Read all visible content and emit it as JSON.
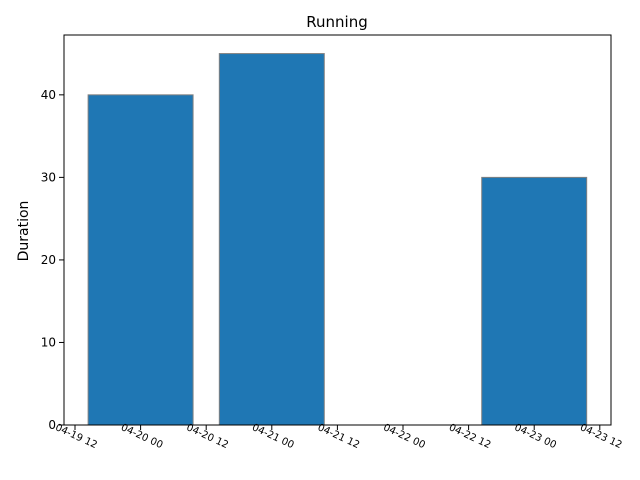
{
  "chart_data": {
    "type": "bar",
    "title": "Running",
    "xlabel": "",
    "ylabel": "Duration",
    "x": [
      "2024-04-20",
      "2024-04-21",
      "2024-04-23"
    ],
    "values": [
      40,
      45,
      30
    ],
    "xtick_labels": [
      "04-19 12",
      "04-20 00",
      "04-20 12",
      "04-21 00",
      "04-21 12",
      "04-22 00",
      "04-22 12",
      "04-23 00",
      "04-23 12"
    ],
    "ytick_labels": [
      "0",
      "10",
      "20",
      "30",
      "40"
    ],
    "ylim": [
      0,
      47.25
    ],
    "bar_color": "#1f77b4",
    "bar_edge_color": "#808080",
    "grid": false,
    "legend": "none"
  }
}
